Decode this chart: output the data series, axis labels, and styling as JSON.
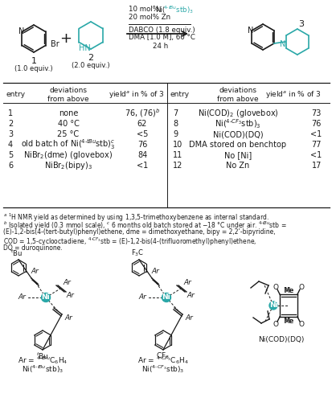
{
  "teal": "#2aa8a8",
  "black": "#1a1a1a",
  "rows_left": [
    [
      "1",
      "none",
      "76, (76)$^b$"
    ],
    [
      "2",
      "40 °C",
      "62"
    ],
    [
      "3",
      "25 °C",
      "<5"
    ],
    [
      "4",
      "old batch of Ni($^{4\\text{-}t\\!Bu}$stb)$_3^c$",
      "76"
    ],
    [
      "5",
      "NiBr$_2$(dme) (glovebox)",
      "84"
    ],
    [
      "6",
      "NiBr$_2$(bipy)$_3$",
      "<1"
    ]
  ],
  "rows_right": [
    [
      "7",
      "Ni(COD)$_2$ (glovebox)",
      "73"
    ],
    [
      "8",
      "Ni($^{4\\text{-}CF_3}$stb)$_3$",
      "76"
    ],
    [
      "9",
      "Ni(COD)(DQ)",
      "<1"
    ],
    [
      "10",
      "DMA stored on benchtop",
      "77"
    ],
    [
      "11",
      "No [Ni]",
      "<1"
    ],
    [
      "12",
      "No Zn",
      "17"
    ]
  ],
  "footnotes": [
    "$^a$ $^1$H NMR yield as determined by using 1,3,5-trimethoxybenzene as internal standard.",
    "$^b$ Isolated yield (0.3 mmol scale), $^c$ 6 months old batch stored at $-$18 °C under air. $^{4\\text{-}t\\!Bu}$stb =",
    "(E)-1,2-bis(4-(tert-butyl)phenyl)ethene, dme = dimethoxyethane, bipy = 2,2’-bipyridine,",
    "COD = 1,5-cyclooctadiene, $^{4\\text{-}CF_3}$stb = (E)-1,2-bis(4-(trifluoromethyl)phenyl)ethene,",
    "DQ = duroquinone."
  ]
}
